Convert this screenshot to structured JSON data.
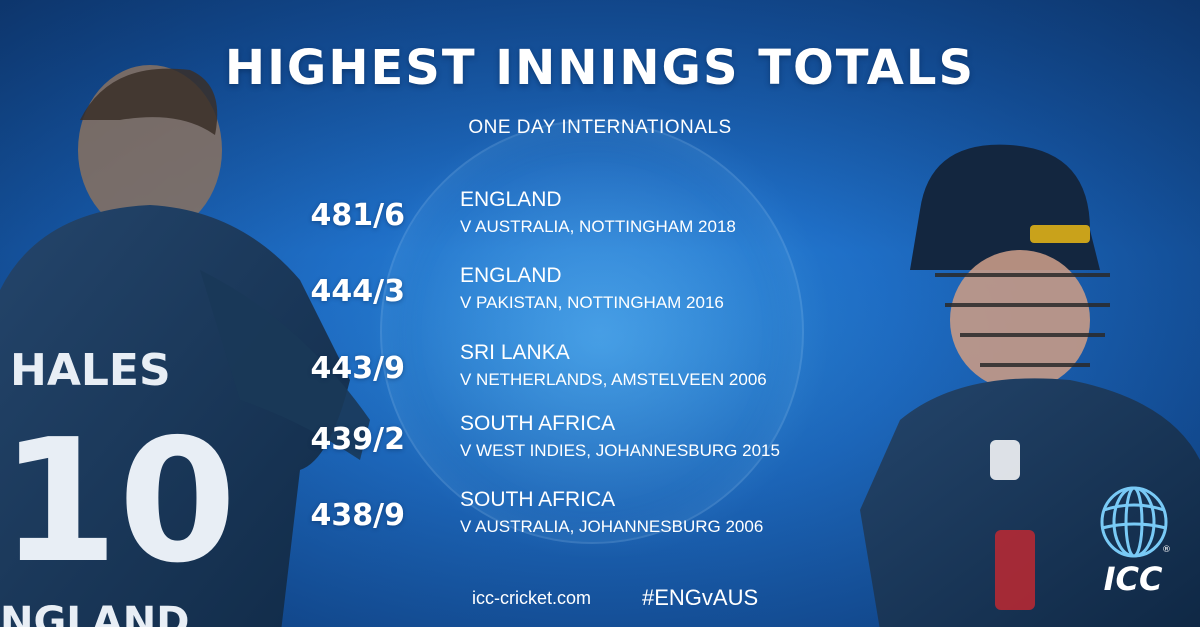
{
  "title": "HIGHEST INNINGS TOTALS",
  "subtitle": "ONE DAY INTERNATIONALS",
  "rows": [
    {
      "score": "481/6",
      "team": "ENGLAND",
      "opponent": "V AUSTRALIA, NOTTINGHAM 2018"
    },
    {
      "score": "444/3",
      "team": "ENGLAND",
      "opponent": "V PAKISTAN, NOTTINGHAM 2016"
    },
    {
      "score": "443/9",
      "team": "SRI LANKA",
      "opponent": "V NETHERLANDS, AMSTELVEEN 2006"
    },
    {
      "score": "439/2",
      "team": "SOUTH AFRICA",
      "opponent": "V WEST INDIES, JOHANNESBURG 2015"
    },
    {
      "score": "438/9",
      "team": "SOUTH AFRICA",
      "opponent": "V AUSTRALIA, JOHANNESBURG 2006"
    }
  ],
  "footer": {
    "site": "icc-cricket.com",
    "hashtag": "#ENGvAUS"
  },
  "players": {
    "left_shirt_name": "HALES",
    "left_shirt_number": "10",
    "left_shirt_team": "NGLAND"
  },
  "logo": {
    "text": "ICC",
    "icon": "icc-globe-logo"
  },
  "colors": {
    "background": "#1f6fc7",
    "text": "#ffffff",
    "shirt": "#1c3a5c"
  }
}
